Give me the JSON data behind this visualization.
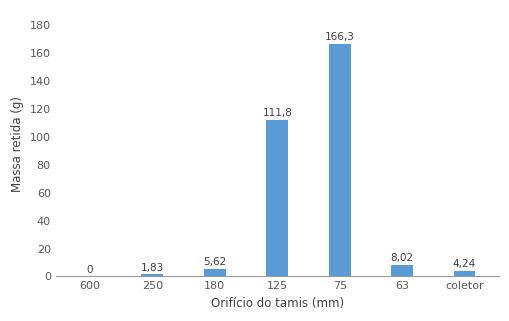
{
  "categories": [
    "600",
    "250",
    "180",
    "125",
    "75",
    "63",
    "coletor"
  ],
  "values": [
    0,
    1.83,
    5.62,
    111.8,
    166.3,
    8.02,
    4.24
  ],
  "labels": [
    "0",
    "1,83",
    "5,62",
    "111,8",
    "166,3",
    "8,02",
    "4,24"
  ],
  "bar_color": "#5B9BD5",
  "xlabel": "Orifício do tamis (mm)",
  "ylabel": "Massa retida (g)",
  "ylim": [
    0,
    190
  ],
  "yticks": [
    0,
    20,
    40,
    60,
    80,
    100,
    120,
    140,
    160,
    180
  ],
  "bar_width": 0.35,
  "label_fontsize": 7.5,
  "axis_label_fontsize": 8.5,
  "tick_fontsize": 8,
  "background_color": "#ffffff"
}
